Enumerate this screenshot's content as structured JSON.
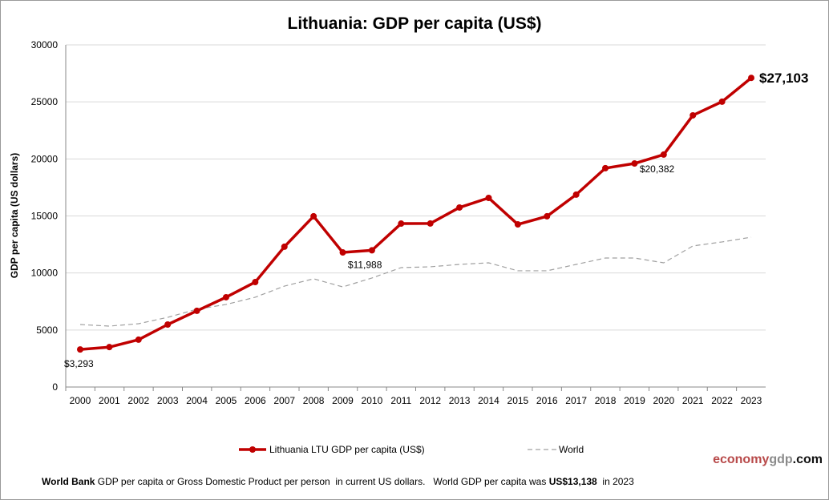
{
  "chart_data": {
    "type": "line",
    "title": "Lithuania: GDP per capita (US$)",
    "ylabel": "GDP per capita (US dollars)",
    "xlabel": "",
    "ylim": [
      0,
      30000
    ],
    "yticks": [
      0,
      5000,
      10000,
      15000,
      20000,
      25000,
      30000
    ],
    "grid": true,
    "legend_placement": "bottom",
    "x": [
      2000,
      2001,
      2002,
      2003,
      2004,
      2005,
      2006,
      2007,
      2008,
      2009,
      2010,
      2011,
      2012,
      2013,
      2014,
      2015,
      2016,
      2017,
      2018,
      2019,
      2020,
      2021,
      2022,
      2023
    ],
    "series": [
      {
        "name": "Lithuania LTU GDP per capita (US$)",
        "color": "#c00000",
        "style": "solid-markers",
        "values": [
          3293,
          3500,
          4150,
          5480,
          6680,
          7870,
          9200,
          12300,
          14970,
          11800,
          11988,
          14330,
          14340,
          15740,
          16580,
          14260,
          14970,
          16870,
          19190,
          19600,
          20382,
          23820,
          25020,
          27103
        ]
      },
      {
        "name": "World",
        "color": "#a0a0a0",
        "style": "dashed",
        "values": [
          5480,
          5340,
          5550,
          6110,
          6820,
          7240,
          7870,
          8850,
          9490,
          8780,
          9560,
          10470,
          10540,
          10750,
          10890,
          10190,
          10190,
          10750,
          11310,
          11310,
          10890,
          12370,
          12720,
          13138
        ]
      }
    ],
    "annotations": [
      {
        "year": 2000,
        "text": "$3,293"
      },
      {
        "year": 2010,
        "text": "$11,988"
      },
      {
        "year": 2020,
        "text": "$20,382"
      },
      {
        "year": 2023,
        "text": "$27,103"
      }
    ]
  },
  "footer": {
    "source_bold": "World Bank",
    "text": " GDP per capita or Gross Domestic Product per person  in current US dollars.   World GDP per capita was ",
    "world_value": "US$13,138",
    "year_text": "  in 2023"
  },
  "brand": {
    "part1": "economy",
    "part2": "gdp",
    "part3": ".com",
    "color1": "#b84a4a",
    "color2": "#8a8a8a",
    "color3": "#111111"
  }
}
